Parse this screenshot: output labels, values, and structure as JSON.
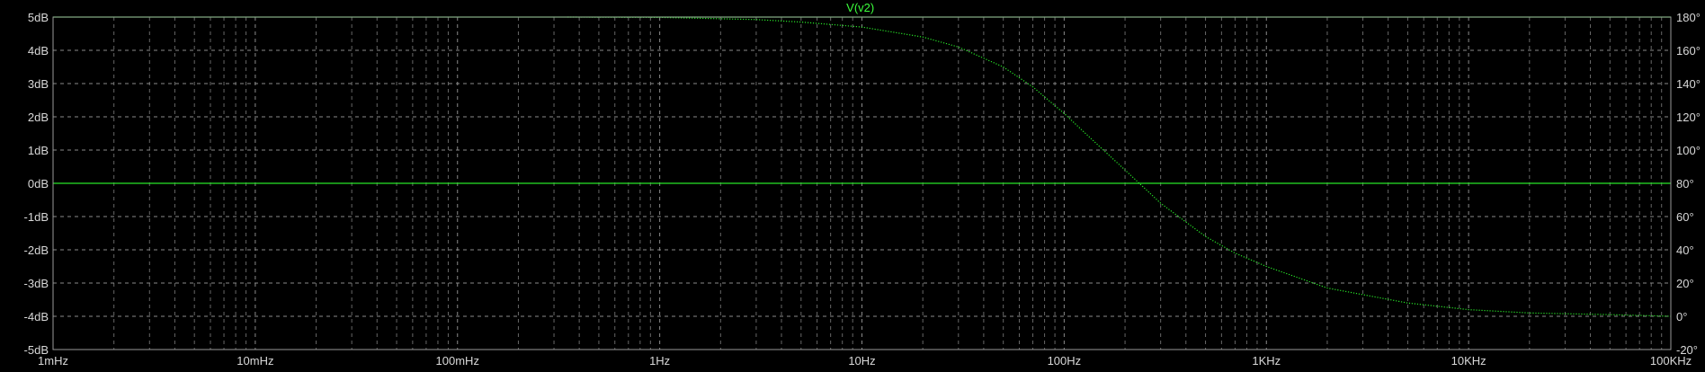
{
  "chart_data": {
    "type": "line",
    "title": "V(v2)",
    "xlabel": "",
    "ylabel": "",
    "x_scale": "log",
    "xlim": [
      0.001,
      100000
    ],
    "x_tick_values": [
      0.001,
      0.01,
      0.1,
      1,
      10,
      100,
      1000,
      10000,
      100000
    ],
    "x_tick_labels": [
      "1mHz",
      "10mHz",
      "100mHz",
      "1Hz",
      "10Hz",
      "100Hz",
      "1KHz",
      "10KHz",
      "100KHz"
    ],
    "ylim_left": [
      -5,
      5
    ],
    "y_left_tick_values": [
      5,
      4,
      3,
      2,
      1,
      0,
      -1,
      -2,
      -3,
      -4,
      -5
    ],
    "y_left_tick_labels": [
      "5dB",
      "4dB",
      "3dB",
      "2dB",
      "1dB",
      "0dB",
      "-1dB",
      "-2dB",
      "-3dB",
      "-4dB",
      "-5dB"
    ],
    "ylim_right": [
      -20,
      180
    ],
    "y_right_tick_values": [
      180,
      160,
      140,
      120,
      100,
      80,
      60,
      40,
      20,
      0,
      -20
    ],
    "y_right_tick_labels": [
      "180°",
      "160°",
      "140°",
      "120°",
      "100°",
      "80°",
      "60°",
      "40°",
      "20°",
      "0°",
      "-20°"
    ],
    "grid": true,
    "colors": {
      "trace": "#28e628",
      "title": "#3cff3c",
      "grid": "#8a8a8a",
      "background": "#000000",
      "text": "#d8d8d8"
    },
    "series": [
      {
        "axis": "left",
        "style": "solid",
        "x": [
          0.001,
          0.01,
          0.1,
          1,
          10,
          100,
          1000,
          10000,
          100000
        ],
        "values": [
          5,
          5,
          5,
          5,
          5,
          5,
          5,
          5,
          5
        ]
      },
      {
        "axis": "left",
        "style": "solid",
        "x": [
          0.001,
          0.01,
          0.1,
          1,
          10,
          100,
          1000,
          10000,
          100000
        ],
        "values": [
          0,
          0,
          0,
          0,
          0,
          0,
          0,
          0,
          0
        ]
      },
      {
        "axis": "right",
        "style": "dotted",
        "x": [
          0.35,
          1,
          3,
          5,
          10,
          20,
          30,
          50,
          70,
          100,
          150,
          200,
          300,
          500,
          700,
          1000,
          2000,
          5000,
          10000,
          20000,
          50000,
          100000
        ],
        "values": [
          180,
          179.8,
          178.5,
          177,
          174,
          168,
          162,
          150,
          138,
          122,
          102,
          88,
          68,
          48,
          38,
          30,
          17,
          8,
          4,
          2,
          1,
          0
        ]
      }
    ]
  }
}
